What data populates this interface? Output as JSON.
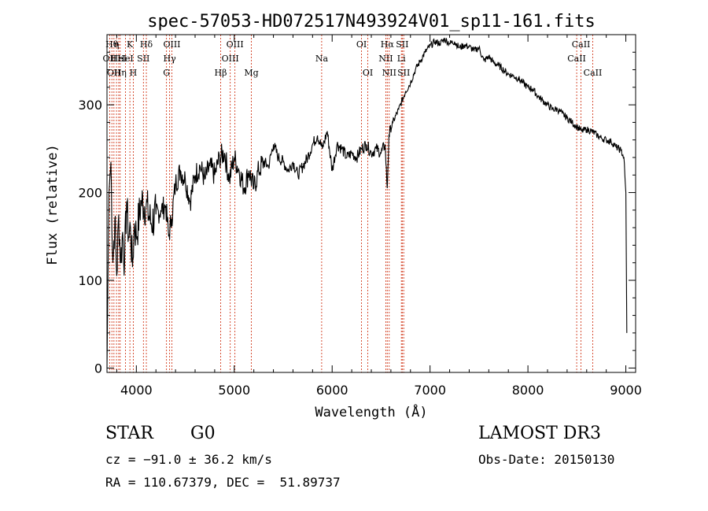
{
  "chart_data": {
    "type": "line",
    "title": "spec-57053-HD072517N493924V01_sp11-161.fits",
    "xlabel": "Wavelength (Å)",
    "ylabel": "Flux (relative)",
    "xlim": [
      3700,
      9100
    ],
    "ylim": [
      -5,
      380
    ],
    "x_ticks": [
      4000,
      5000,
      6000,
      7000,
      8000,
      9000
    ],
    "y_ticks": [
      0,
      100,
      200,
      300
    ],
    "grid": false,
    "series": [
      {
        "x": [
          3700,
          3720,
          3740,
          3760,
          3780,
          3800,
          3820,
          3840,
          3860,
          3880,
          3900,
          3920,
          3940,
          3960,
          3980,
          4000,
          4050,
          4100,
          4150,
          4200,
          4250,
          4300,
          4330,
          4360,
          4400,
          4450,
          4500,
          4550,
          4600,
          4650,
          4700,
          4750,
          4800,
          4850,
          4900,
          4950,
          5000,
          5050,
          5100,
          5150,
          5200,
          5250,
          5300,
          5350,
          5400,
          5450,
          5500,
          5550,
          5600,
          5650,
          5700,
          5750,
          5800,
          5850,
          5900,
          5950,
          6000,
          6050,
          6100,
          6150,
          6200,
          6250,
          6300,
          6350,
          6400,
          6450,
          6500,
          6540,
          6563,
          6580,
          6620,
          6680,
          6750,
          6800,
          6850,
          6900,
          6950,
          7000,
          7050,
          7100,
          7150,
          7200,
          7250,
          7300,
          7350,
          7400,
          7450,
          7500,
          7550,
          7600,
          7650,
          7700,
          7750,
          7800,
          7850,
          7900,
          7950,
          8000,
          8050,
          8100,
          8150,
          8200,
          8250,
          8300,
          8350,
          8400,
          8450,
          8500,
          8550,
          8600,
          8650,
          8700,
          8750,
          8800,
          8850,
          8900,
          8950,
          8980,
          9000,
          9010
        ],
        "y": [
          0,
          200,
          235,
          120,
          170,
          105,
          175,
          120,
          155,
          120,
          190,
          150,
          160,
          115,
          165,
          150,
          190,
          185,
          165,
          175,
          180,
          185,
          150,
          170,
          210,
          225,
          215,
          190,
          220,
          230,
          215,
          230,
          220,
          240,
          245,
          215,
          240,
          225,
          205,
          225,
          205,
          225,
          235,
          230,
          255,
          240,
          235,
          225,
          235,
          220,
          230,
          240,
          255,
          265,
          250,
          270,
          225,
          255,
          250,
          240,
          245,
          240,
          250,
          255,
          245,
          250,
          245,
          255,
          205,
          265,
          280,
          295,
          315,
          325,
          340,
          350,
          360,
          367,
          372,
          370,
          375,
          370,
          372,
          365,
          368,
          366,
          362,
          365,
          350,
          355,
          348,
          345,
          340,
          335,
          333,
          330,
          325,
          320,
          318,
          310,
          305,
          300,
          295,
          295,
          290,
          285,
          280,
          275,
          270,
          272,
          270,
          266,
          262,
          260,
          258,
          252,
          248,
          240,
          200,
          40
        ]
      }
    ],
    "lines": [
      {
        "x": 3727,
        "row": 1,
        "label": "OII"
      },
      {
        "x": 3750,
        "row": 0,
        "label": "Hθ"
      },
      {
        "x": 3771,
        "row": 2,
        "label": "OII"
      },
      {
        "x": 3797,
        "row": 0,
        "label": "η"
      },
      {
        "x": 3820,
        "row": 1,
        "label": "HeI"
      },
      {
        "x": 3835,
        "row": 2,
        "label": "Hη"
      },
      {
        "x": 3889,
        "row": 1,
        "label": "HeI"
      },
      {
        "x": 3934,
        "row": 0,
        "label": "K"
      },
      {
        "x": 3969,
        "row": 2,
        "label": "H"
      },
      {
        "x": 4072,
        "row": 1,
        "label": "SII"
      },
      {
        "x": 4102,
        "row": 0,
        "label": "Hδ"
      },
      {
        "x": 4308,
        "row": 2,
        "label": "G"
      },
      {
        "x": 4340,
        "row": 1,
        "label": "Hγ"
      },
      {
        "x": 4363,
        "row": 0,
        "label": "OIII"
      },
      {
        "x": 4861,
        "row": 2,
        "label": "Hβ"
      },
      {
        "x": 4959,
        "row": 1,
        "label": "OIII"
      },
      {
        "x": 5007,
        "row": 0,
        "label": "OIII"
      },
      {
        "x": 5175,
        "row": 2,
        "label": "Mg"
      },
      {
        "x": 5893,
        "row": 1,
        "label": "Na"
      },
      {
        "x": 6300,
        "row": 0,
        "label": "OI"
      },
      {
        "x": 6364,
        "row": 2,
        "label": "OI"
      },
      {
        "x": 6548,
        "row": 1,
        "label": "NII"
      },
      {
        "x": 6563,
        "row": 0,
        "label": "Hα"
      },
      {
        "x": 6583,
        "row": 2,
        "label": "NII"
      },
      {
        "x": 6707,
        "row": 1,
        "label": "Li"
      },
      {
        "x": 6716,
        "row": 0,
        "label": "SII"
      },
      {
        "x": 6731,
        "row": 2,
        "label": "SII"
      },
      {
        "x": 8498,
        "row": 1,
        "label": "CaII"
      },
      {
        "x": 8542,
        "row": 0,
        "label": "CaII"
      },
      {
        "x": 8662,
        "row": 2,
        "label": "CaII"
      }
    ],
    "line_color": "#cc2200"
  },
  "info": {
    "class": "STAR",
    "subclass": "G0",
    "survey": "LAMOST DR3",
    "cz": "cz = −91.0 ± 36.2 km/s",
    "obs_date": "Obs-Date: 20150130",
    "coords": "RA = 110.67379, DEC =  51.89737"
  }
}
